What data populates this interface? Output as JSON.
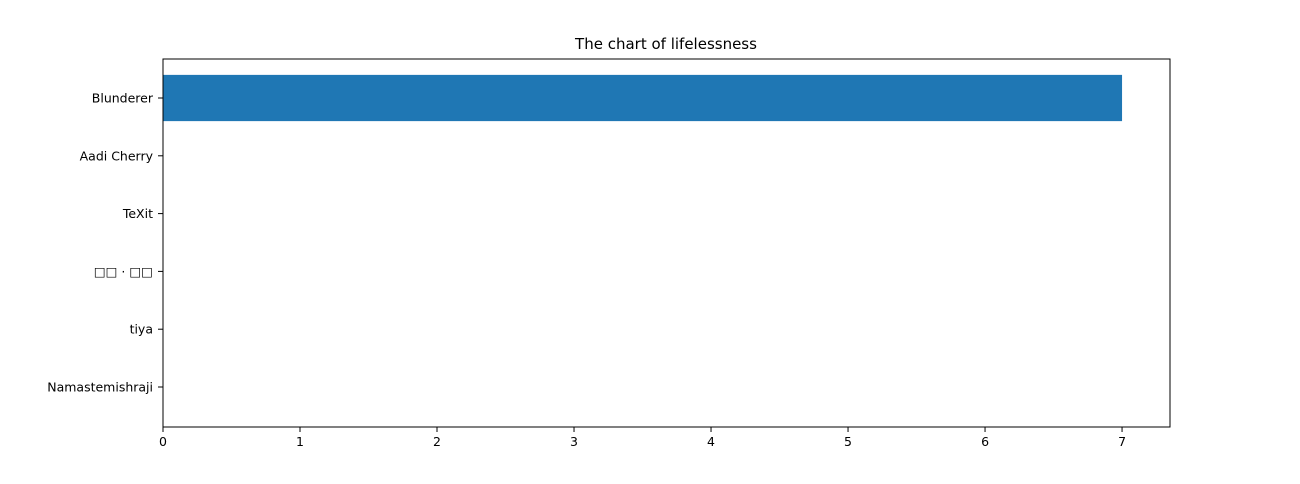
{
  "chart_data": {
    "type": "bar",
    "orientation": "horizontal",
    "title": "The chart of lifelessness",
    "xlabel": "",
    "ylabel": "",
    "categories": [
      "Blunderer",
      "Aadi Cherry",
      "TeXit",
      "□□ · □□",
      "tiya",
      "Namastemishraji"
    ],
    "values": [
      7,
      0,
      0,
      0,
      0,
      0
    ],
    "xlim": [
      0,
      7.35
    ],
    "xticks": [
      0,
      1,
      2,
      3,
      4,
      5,
      6,
      7
    ],
    "grid": false,
    "legend": "none",
    "bar_color": "#1f77b4"
  }
}
